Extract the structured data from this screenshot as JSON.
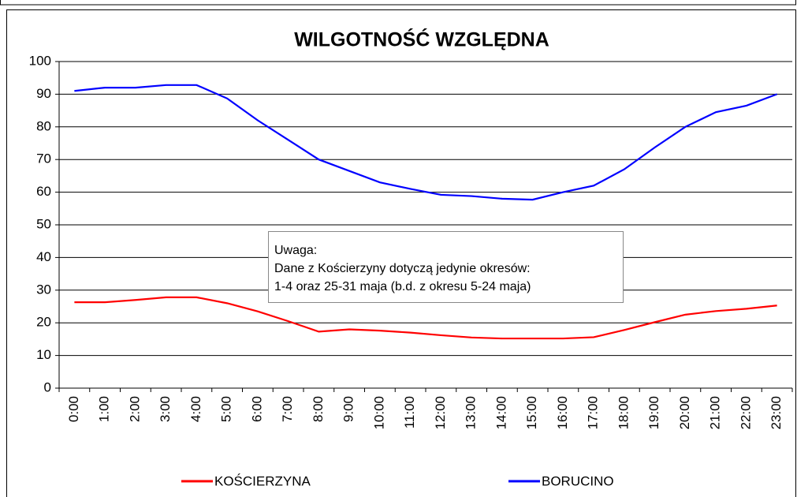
{
  "chart_data": {
    "type": "line",
    "title": "WILGOTNOŚĆ WZGLĘDNA",
    "categories": [
      "0:00",
      "1:00",
      "2:00",
      "3:00",
      "4:00",
      "5:00",
      "6:00",
      "7:00",
      "8:00",
      "9:00",
      "10:00",
      "11:00",
      "12:00",
      "13:00",
      "14:00",
      "15:00",
      "16:00",
      "17:00",
      "18:00",
      "19:00",
      "20:00",
      "21:00",
      "22:00",
      "23:00"
    ],
    "series": [
      {
        "name": "KOŚCIERZYNA",
        "color": "#ff0000",
        "values": [
          26.3,
          26.3,
          27,
          27.8,
          27.8,
          26,
          23.5,
          20.5,
          17.3,
          18,
          17.6,
          17,
          16.2,
          15.5,
          15.2,
          15.2,
          15.2,
          15.6,
          17.8,
          20.2,
          22.5,
          23.6,
          24.3,
          25.3
        ]
      },
      {
        "name": "BORUCINO",
        "color": "#0000ff",
        "values": [
          91,
          92,
          92,
          92.8,
          92.8,
          88.7,
          82,
          76,
          70,
          66.5,
          63,
          61,
          59.2,
          58.8,
          58,
          57.7,
          60,
          62,
          67,
          73.7,
          80,
          84.5,
          86.5,
          90
        ]
      }
    ],
    "annotation": [
      "Uwaga:",
      "Dane z Kościerzyny dotyczą jedynie okresów:",
      "1-4 oraz 25-31 maja (b.d. z okresu 5-24 maja)"
    ],
    "ylim": [
      0,
      100
    ],
    "yticks": [
      0,
      10,
      20,
      30,
      40,
      50,
      60,
      70,
      80,
      90,
      100
    ],
    "grid": true
  }
}
